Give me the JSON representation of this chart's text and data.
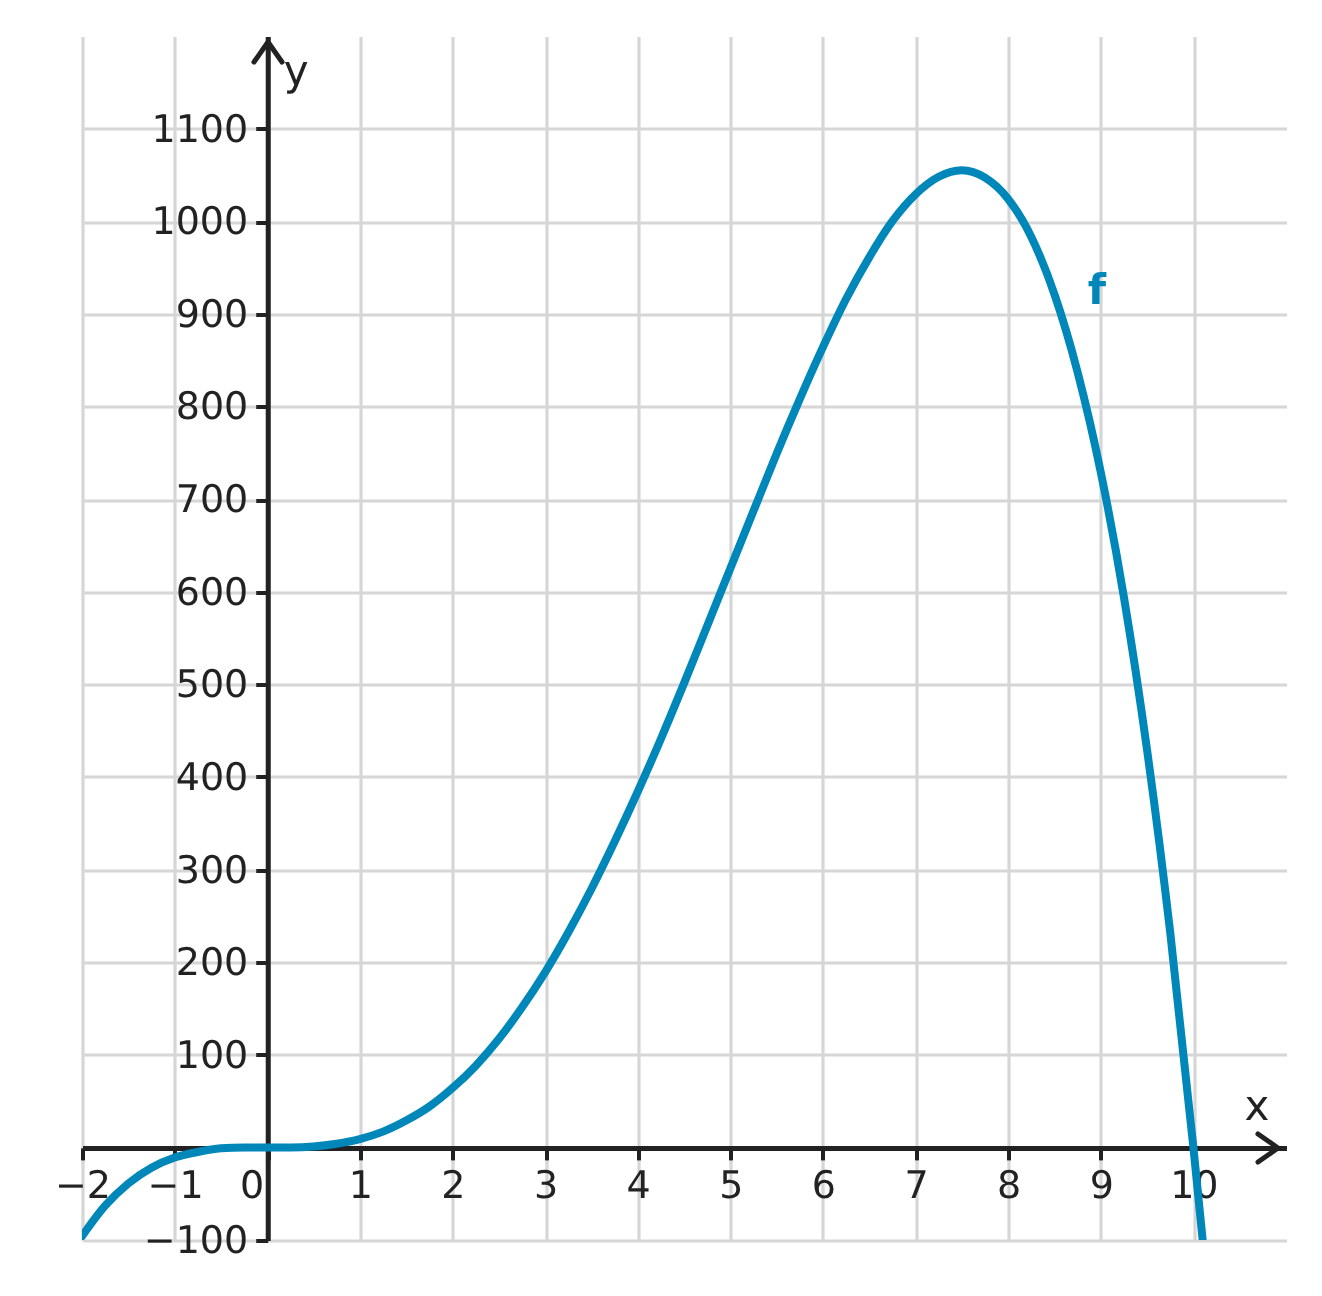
{
  "chart_data": {
    "type": "line",
    "xlabel": "x",
    "ylabel": "y",
    "x": [
      -2,
      -1.75,
      -1.5,
      -1.25,
      -1,
      -0.75,
      -0.5,
      -0.25,
      0,
      0.25,
      0.5,
      0.75,
      1,
      1.25,
      1.5,
      1.75,
      2,
      2.25,
      2.5,
      2.75,
      3,
      3.25,
      3.5,
      3.75,
      4,
      4.25,
      4.5,
      4.75,
      5,
      5.25,
      5.5,
      5.75,
      6,
      6.25,
      6.5,
      6.75,
      7,
      7.25,
      7.5,
      7.75,
      8,
      8.25,
      8.5,
      8.75,
      9,
      9.25,
      9.5,
      9.75,
      10,
      10.1
    ],
    "series": [
      {
        "name": "f",
        "color": "#0087b9",
        "values": [
          -96,
          -63,
          -39,
          -22,
          -11,
          -5,
          -1,
          0,
          0,
          0,
          1,
          4,
          9,
          17,
          29,
          44,
          64,
          88,
          117,
          151,
          189,
          232,
          279,
          330,
          384,
          441,
          501,
          563,
          625,
          687,
          749,
          808,
          864,
          916,
          961,
          1000,
          1029,
          1048,
          1055,
          1047,
          1024,
          983,
          921,
          837,
          729,
          594,
          429,
          232,
          0,
          -100
        ]
      }
    ],
    "xlim": [
      -2,
      11
    ],
    "ylim": [
      -100,
      1200
    ],
    "xticks": [
      {
        "value": -2,
        "label": "−2"
      },
      {
        "value": -1,
        "label": "−1"
      },
      0,
      1,
      2,
      3,
      4,
      5,
      6,
      7,
      8,
      9,
      10
    ],
    "yticks": [
      {
        "value": -100,
        "label": "−100"
      },
      100,
      200,
      300,
      400,
      500,
      600,
      700,
      800,
      900,
      1000,
      1100
    ],
    "grid": true
  }
}
